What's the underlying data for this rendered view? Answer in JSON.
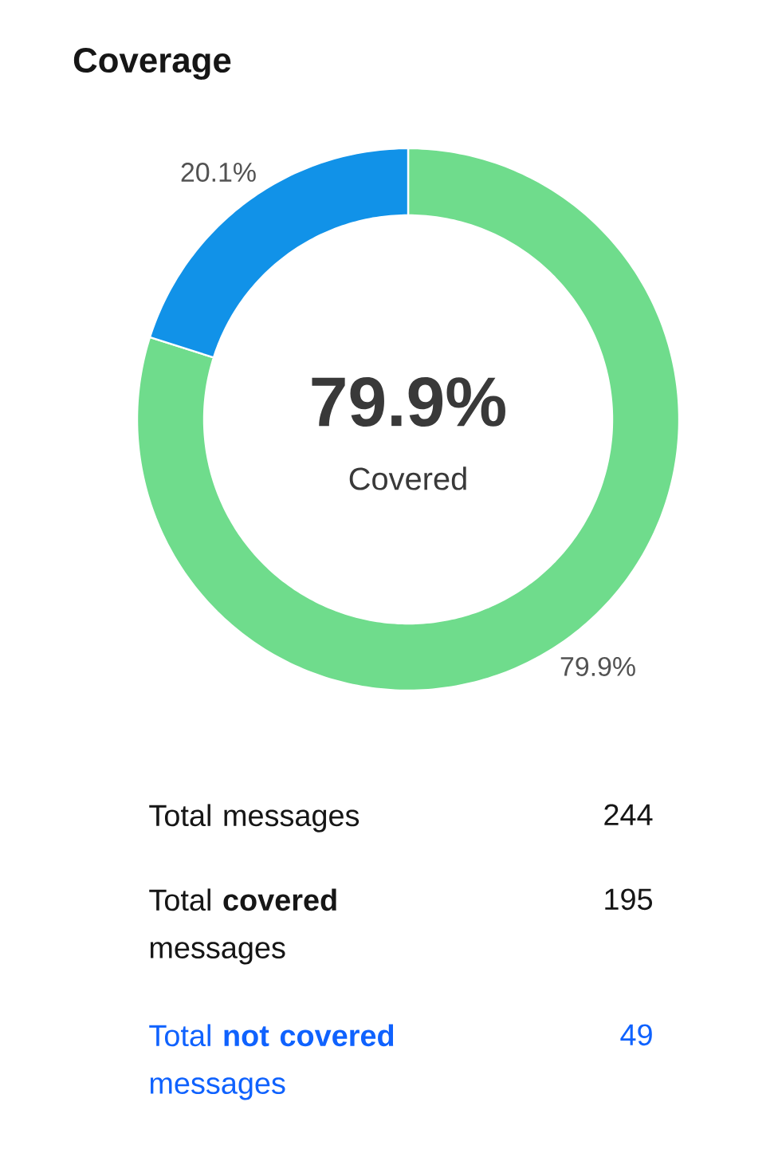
{
  "chart_data": {
    "type": "donut",
    "title": "Coverage",
    "categories": [
      null,
      null
    ],
    "values": [
      79.9,
      20.1
    ],
    "colors": [
      "#6fdc8c",
      "#1192e8"
    ],
    "value_labels": [
      "79.9%",
      "20.1%"
    ],
    "annotations": [
      "79.9%",
      "Covered",
      "Total messages",
      "244",
      "Total **covered** messages",
      "195",
      "Total **not covered** messages",
      "49"
    ]
  }
}
